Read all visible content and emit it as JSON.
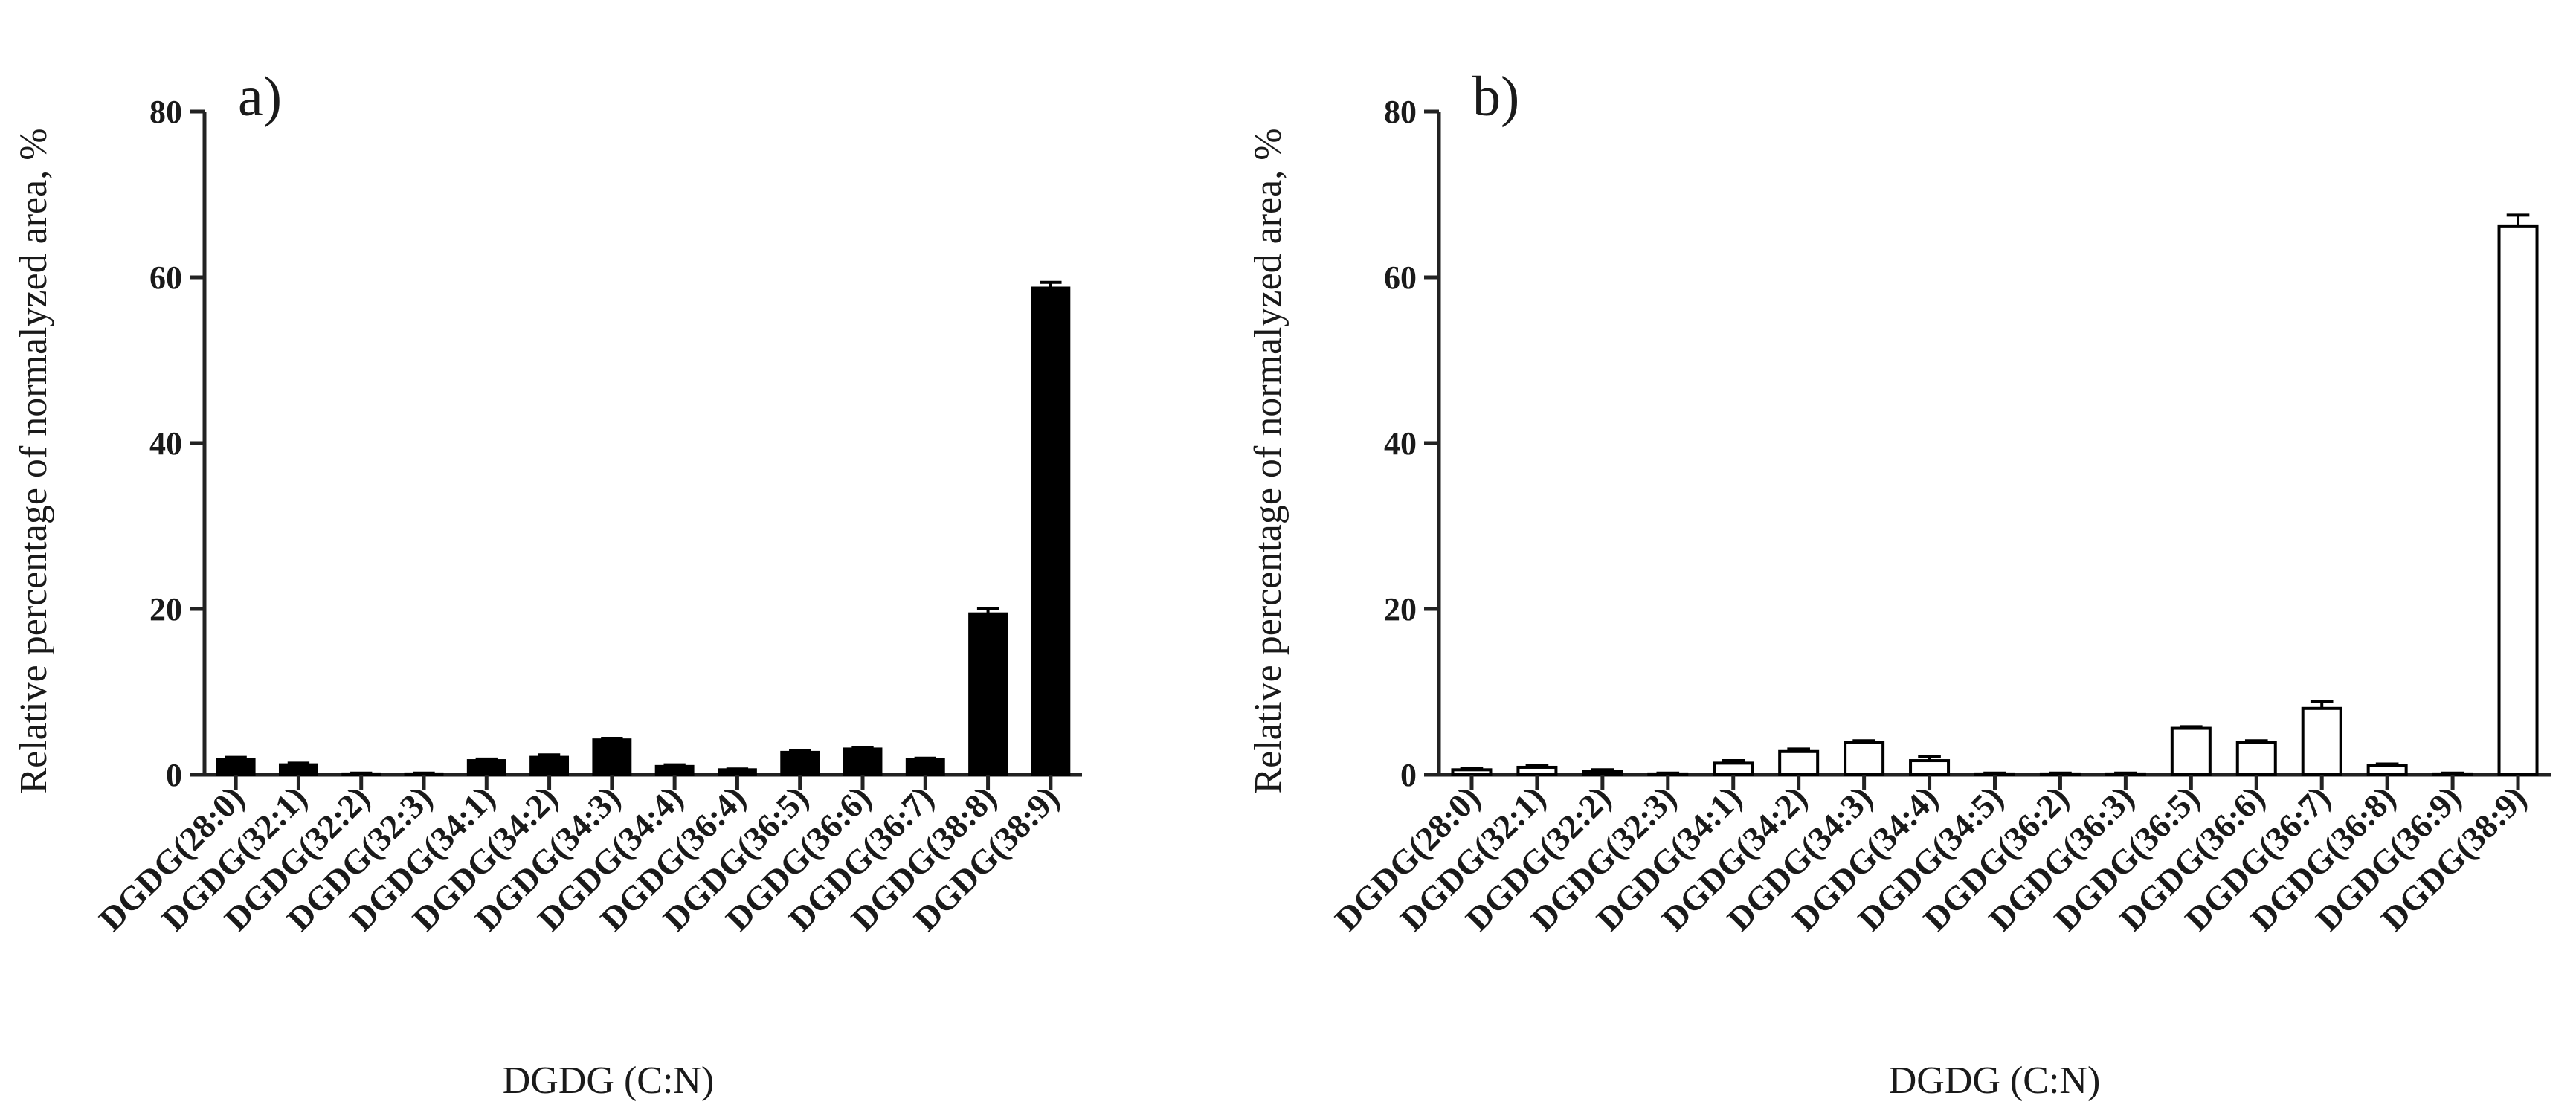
{
  "chart_data": [
    {
      "type": "bar",
      "panel_label": "a)",
      "bar_fill": "#000000",
      "title": "",
      "xlabel": "DGDG (C:N)",
      "ylabel": "Relative percentage of normalyzed area, %",
      "ylim": [
        0,
        80
      ],
      "yticks": [
        "0",
        "20",
        "40",
        "60",
        "80"
      ],
      "grid": false,
      "categories": [
        "DGDG(28:0)",
        "DGDG(32:1)",
        "DGDG(32:2)",
        "DGDG(32:3)",
        "DGDG(34:1)",
        "DGDG(34:2)",
        "DGDG(34:3)",
        "DGDG(34:4)",
        "DGDG(36:4)",
        "DGDG(36:5)",
        "DGDG(36:6)",
        "DGDG(36:7)",
        "DGDG(38:8)",
        "DGDG(38:9)"
      ],
      "values": [
        1.8,
        1.2,
        0.1,
        0.1,
        1.7,
        2.1,
        4.2,
        1.0,
        0.6,
        2.7,
        3.1,
        1.8,
        19.4,
        58.7
      ],
      "errors": [
        0.3,
        0.2,
        0.1,
        0.1,
        0.2,
        0.3,
        0.2,
        0.2,
        0.1,
        0.2,
        0.2,
        0.2,
        0.6,
        0.7
      ]
    },
    {
      "type": "bar",
      "panel_label": "b)",
      "bar_fill": "#ffffff",
      "title": "",
      "xlabel": "DGDG (C:N)",
      "ylabel": "Relative percentage of normalyzed area, %",
      "ylim": [
        0,
        80
      ],
      "yticks": [
        "0",
        "20",
        "40",
        "60",
        "80"
      ],
      "grid": false,
      "categories": [
        "DGDG(28:0)",
        "DGDG(32:1)",
        "DGDG(32:2)",
        "DGDG(32:3)",
        "DGDG(34:1)",
        "DGDG(34:2)",
        "DGDG(34:3)",
        "DGDG(34:4)",
        "DGDG(34:5)",
        "DGDG(36:2)",
        "DGDG(36:3)",
        "DGDG(36:5)",
        "DGDG(36:6)",
        "DGDG(36:7)",
        "DGDG(36:8)",
        "DGDG(36:9)",
        "DGDG(38:9)"
      ],
      "values": [
        0.6,
        0.9,
        0.4,
        0.1,
        1.4,
        2.8,
        3.9,
        1.7,
        0.1,
        0.1,
        0.1,
        5.6,
        3.9,
        8.0,
        1.1,
        0.1,
        66.2
      ],
      "errors": [
        0.2,
        0.2,
        0.2,
        0.1,
        0.3,
        0.3,
        0.2,
        0.5,
        0.1,
        0.1,
        0.1,
        0.2,
        0.2,
        0.8,
        0.2,
        0.1,
        1.3
      ]
    }
  ]
}
